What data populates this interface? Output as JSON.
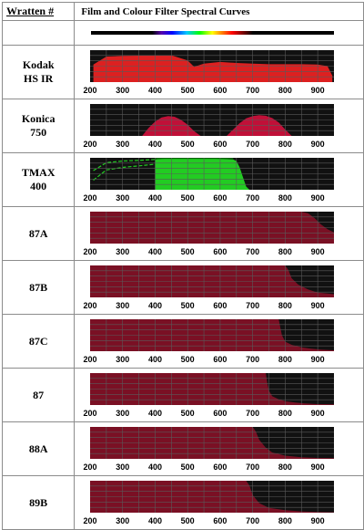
{
  "header": {
    "col1": "Wratten #",
    "col2": "Film and Colour Filter Spectral Curves"
  },
  "colors": {
    "plot_bg": "#111111",
    "grid": "#5a5a5a",
    "film_red": "#dd2020",
    "film_dark_red": "#a81010",
    "filter_maroon": "#7a1024",
    "tmax_green": "#22cc22",
    "tmax_dark": "#0a7a0a"
  },
  "chart_data": [
    {
      "type": "spectrum-bar",
      "x_range": [
        200,
        950
      ],
      "visible_range": [
        400,
        700
      ]
    },
    {
      "type": "area",
      "name": "Kodak HS IR",
      "label_lines": [
        "Kodak",
        "HS IR"
      ],
      "color": "#dd2020",
      "x_ticks": [
        200,
        300,
        400,
        500,
        600,
        700,
        800,
        900
      ],
      "xlim": [
        200,
        950
      ],
      "ylim": [
        0,
        100
      ],
      "x": [
        210,
        250,
        300,
        350,
        400,
        450,
        500,
        520,
        550,
        600,
        650,
        700,
        750,
        800,
        850,
        900,
        930,
        945
      ],
      "y": [
        55,
        80,
        82,
        83,
        84,
        84,
        68,
        48,
        58,
        63,
        60,
        58,
        56,
        56,
        56,
        55,
        50,
        20
      ]
    },
    {
      "type": "area",
      "name": "Konica 750",
      "label_lines": [
        "Konica",
        "750"
      ],
      "color": "#c01038",
      "x_ticks": [
        200,
        300,
        400,
        500,
        600,
        700,
        800,
        900
      ],
      "xlim": [
        200,
        950
      ],
      "ylim": [
        0,
        100
      ],
      "x": [
        360,
        380,
        400,
        420,
        440,
        460,
        480,
        500,
        520,
        540,
        620,
        640,
        660,
        680,
        700,
        720,
        740,
        760,
        780,
        800,
        820
      ],
      "y": [
        0,
        25,
        45,
        58,
        62,
        60,
        50,
        35,
        15,
        0,
        0,
        20,
        40,
        55,
        62,
        65,
        63,
        56,
        42,
        20,
        0
      ]
    },
    {
      "type": "area",
      "name": "TMAX 400",
      "label_lines": [
        "TMAX",
        "400"
      ],
      "color": "#22cc22",
      "x_ticks": [
        200,
        300,
        400,
        500,
        600,
        700,
        800,
        900
      ],
      "xlim": [
        200,
        950
      ],
      "ylim": [
        0,
        100
      ],
      "x": [
        400,
        420,
        450,
        500,
        550,
        600,
        640,
        650,
        660,
        670,
        680,
        690
      ],
      "y": [
        95,
        97,
        98,
        98,
        98,
        97,
        95,
        90,
        70,
        40,
        10,
        0
      ],
      "dashed_x": [
        210,
        250,
        300,
        350,
        400
      ],
      "dashed_y_upper": [
        60,
        85,
        90,
        92,
        95
      ],
      "dashed_y_lower": [
        30,
        62,
        70,
        75,
        80
      ]
    },
    {
      "type": "area",
      "name": "87A",
      "label_lines": [
        "87A"
      ],
      "color": "#7a1024",
      "x_ticks": [
        200,
        300,
        400,
        500,
        600,
        700,
        800,
        900
      ],
      "xlim": [
        200,
        950
      ],
      "ylim": [
        0,
        100
      ],
      "x": [
        200,
        850,
        870,
        890,
        910,
        930,
        950
      ],
      "y": [
        100,
        100,
        95,
        80,
        60,
        45,
        35
      ]
    },
    {
      "type": "area",
      "name": "87B",
      "label_lines": [
        "87B"
      ],
      "color": "#7a1024",
      "x_ticks": [
        200,
        300,
        400,
        500,
        600,
        700,
        800,
        900
      ],
      "xlim": [
        200,
        950
      ],
      "ylim": [
        0,
        100
      ],
      "x": [
        200,
        800,
        810,
        820,
        840,
        870,
        900,
        930,
        950
      ],
      "y": [
        100,
        100,
        85,
        60,
        40,
        25,
        15,
        12,
        10
      ]
    },
    {
      "type": "area",
      "name": "87C",
      "label_lines": [
        "87C"
      ],
      "color": "#7a1024",
      "x_ticks": [
        200,
        300,
        400,
        500,
        600,
        700,
        800,
        900
      ],
      "xlim": [
        200,
        950
      ],
      "ylim": [
        0,
        100
      ],
      "x": [
        200,
        780,
        785,
        790,
        800,
        820,
        850,
        880,
        910,
        950
      ],
      "y": [
        100,
        100,
        75,
        50,
        30,
        20,
        12,
        8,
        5,
        3
      ]
    },
    {
      "type": "area",
      "name": "87",
      "label_lines": [
        "87"
      ],
      "color": "#7a1024",
      "x_ticks": [
        200,
        300,
        400,
        500,
        600,
        700,
        800,
        900
      ],
      "xlim": [
        200,
        950
      ],
      "ylim": [
        0,
        100
      ],
      "x": [
        200,
        740,
        745,
        750,
        760,
        780,
        800,
        830,
        860,
        900,
        950
      ],
      "y": [
        100,
        100,
        70,
        45,
        28,
        18,
        12,
        8,
        5,
        3,
        2
      ]
    },
    {
      "type": "area",
      "name": "88A",
      "label_lines": [
        "88A"
      ],
      "color": "#7a1024",
      "x_ticks": [
        200,
        300,
        400,
        500,
        600,
        700,
        800,
        900
      ],
      "xlim": [
        200,
        950
      ],
      "ylim": [
        0,
        100
      ],
      "x": [
        200,
        700,
        710,
        720,
        740,
        760,
        800,
        850,
        900,
        950
      ],
      "y": [
        100,
        100,
        85,
        60,
        35,
        20,
        10,
        5,
        3,
        2
      ]
    },
    {
      "type": "area",
      "name": "89B",
      "label_lines": [
        "89B"
      ],
      "color": "#7a1024",
      "x_ticks": [
        200,
        300,
        400,
        500,
        600,
        700,
        800,
        900
      ],
      "xlim": [
        200,
        950
      ],
      "ylim": [
        0,
        100
      ],
      "x": [
        200,
        680,
        690,
        700,
        720,
        750,
        800,
        850,
        900,
        950
      ],
      "y": [
        100,
        100,
        85,
        55,
        30,
        15,
        8,
        4,
        2,
        1
      ]
    }
  ]
}
